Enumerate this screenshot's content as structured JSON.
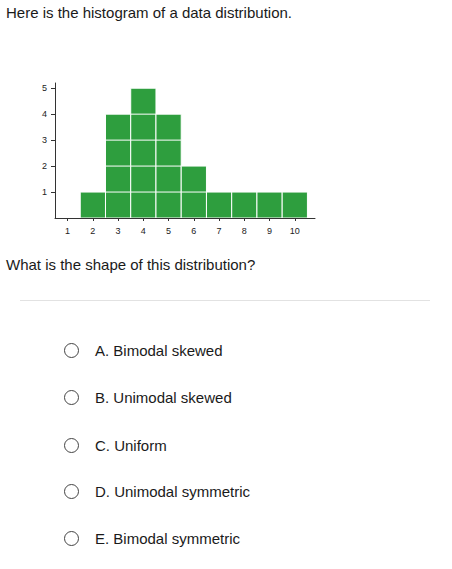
{
  "heading": "Here is the histogram of a data distribution.",
  "chart_data": {
    "type": "histogram",
    "bins": [
      1.5,
      2.5,
      3.5,
      4.5,
      5.5,
      6.5,
      7.5,
      8.5,
      9.5,
      10.5
    ],
    "values": [
      1,
      4,
      5,
      4,
      2,
      1,
      1,
      1,
      1
    ],
    "color": "#2e9e3e",
    "xlim": [
      0.5,
      10.8
    ],
    "ylim": [
      0,
      5.2
    ],
    "xticks": [
      1,
      2,
      3,
      4,
      5,
      6,
      7,
      8,
      9,
      10
    ],
    "yticks": [
      1,
      2,
      3,
      4,
      5
    ],
    "grid": false
  },
  "question": "What is the shape of this distribution?",
  "options": [
    "A. Bimodal skewed",
    "B. Unimodal skewed",
    "C. Uniform",
    "D. Unimodal symmetric",
    "E. Bimodal symmetric"
  ]
}
